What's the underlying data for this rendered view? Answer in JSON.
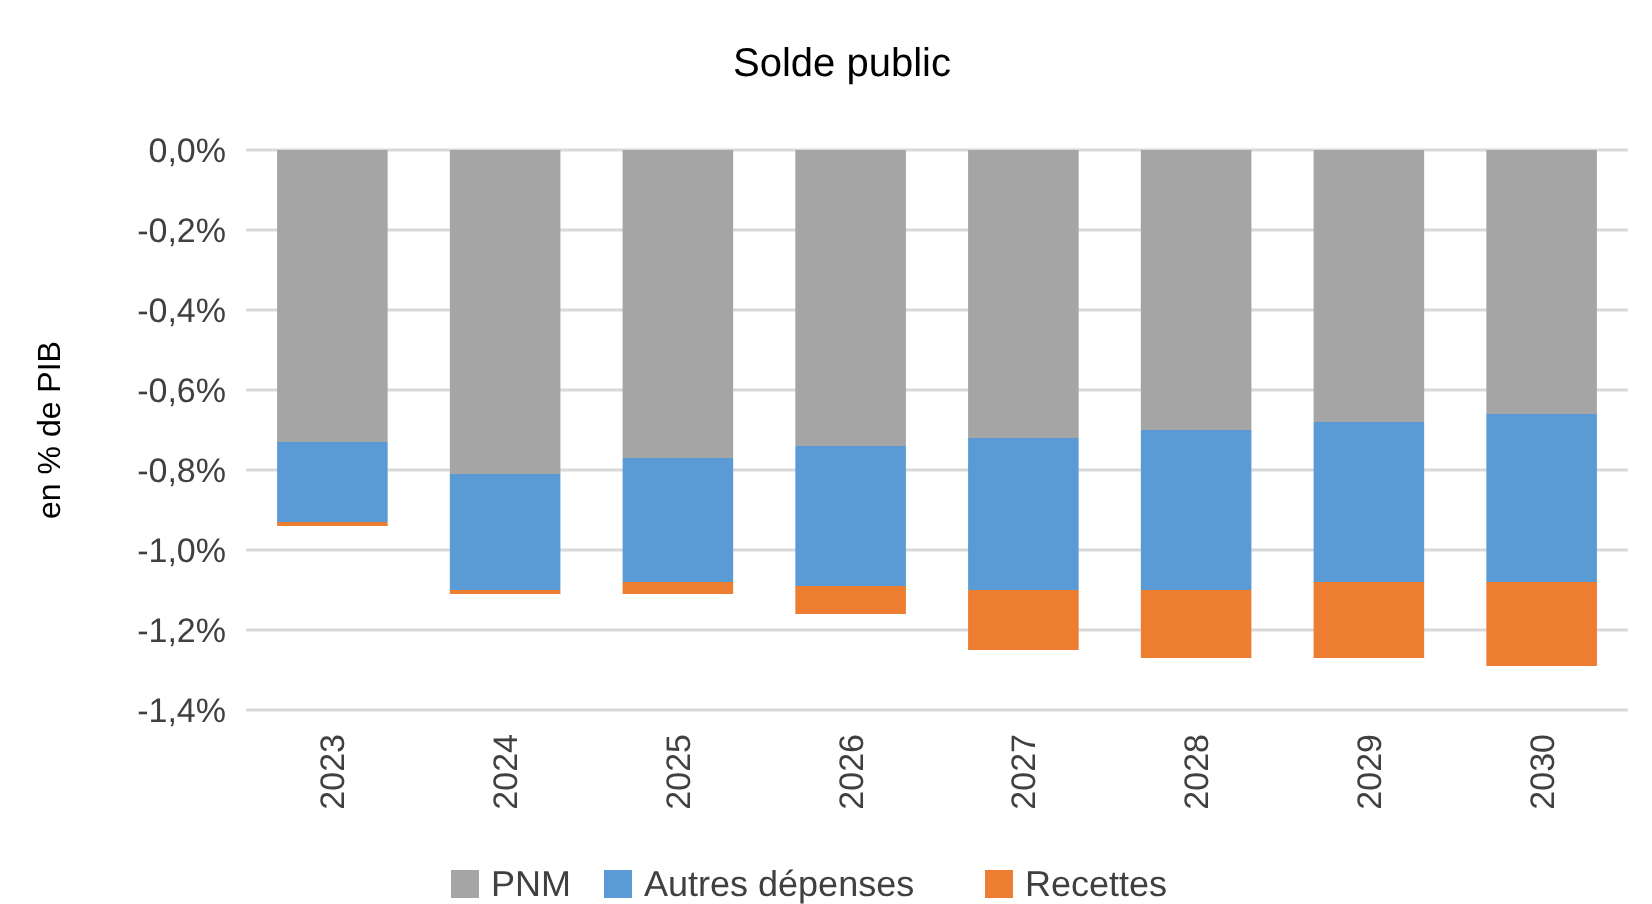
{
  "chart_data": {
    "type": "bar",
    "title": "Solde public",
    "ylabel": "en % de PIB",
    "stacked": true,
    "grid": "y",
    "legend": "bottom",
    "categories": [
      "2023",
      "2024",
      "2025",
      "2026",
      "2027",
      "2028",
      "2029",
      "2030"
    ],
    "series": [
      {
        "name": "PNM",
        "color": "#a5a5a5",
        "values": [
          -0.73,
          -0.81,
          -0.77,
          -0.74,
          -0.72,
          -0.7,
          -0.68,
          -0.66
        ]
      },
      {
        "name": "Autres dépenses",
        "color": "#5b9bd5",
        "values": [
          -0.2,
          -0.29,
          -0.31,
          -0.35,
          -0.38,
          -0.4,
          -0.4,
          -0.42
        ]
      },
      {
        "name": "Recettes",
        "color": "#ed7d31",
        "values": [
          -0.01,
          -0.01,
          -0.03,
          -0.07,
          -0.15,
          -0.17,
          -0.19,
          -0.21
        ]
      }
    ],
    "ylim": [
      -1.4,
      0
    ],
    "yticks": [
      {
        "value": 0,
        "label": "0,0%"
      },
      {
        "value": -0.2,
        "label": "-0,2%"
      },
      {
        "value": -0.4,
        "label": "-0,4%"
      },
      {
        "value": -0.6,
        "label": "-0,6%"
      },
      {
        "value": -0.8,
        "label": "-0,8%"
      },
      {
        "value": -1.0,
        "label": "-1,0%"
      },
      {
        "value": -1.2,
        "label": "-1,2%"
      },
      {
        "value": -1.4,
        "label": "-1,4%"
      }
    ]
  }
}
